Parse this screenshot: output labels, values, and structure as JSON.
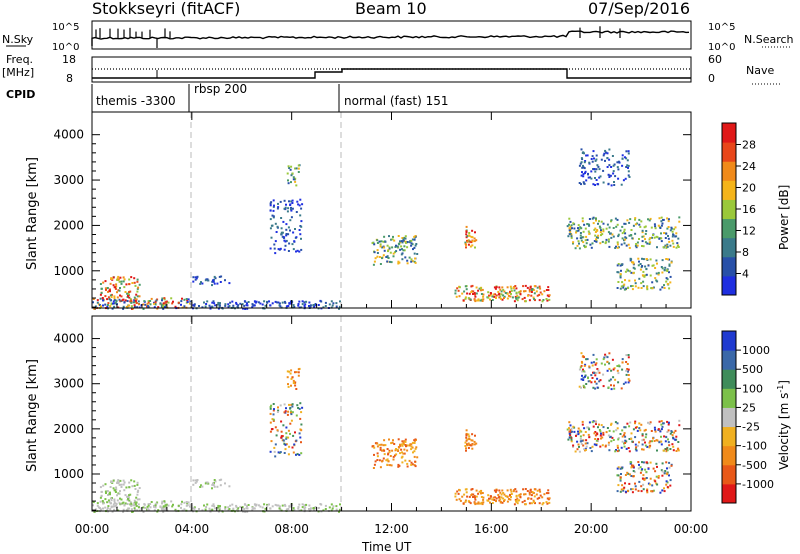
{
  "header": {
    "station": "Stokkseyri (fitACF)",
    "beam": "Beam 10",
    "date": "07/Sep/2016"
  },
  "top_panels": {
    "nsky_label": "N.Sky",
    "nsearch_label": "N.Search",
    "freq_label_1": "Freq.",
    "freq_label_2": "[MHz]",
    "nave_label": "Nave",
    "cpid_label": "CPID",
    "nsky_ticks": [
      "10^5",
      "10^0"
    ],
    "nsearch_ticks": [
      "10^5",
      "10^0"
    ],
    "freq_ticks": [
      "18",
      "8"
    ],
    "nave_ticks": [
      "60",
      "0"
    ],
    "cpid_segments": [
      {
        "label": "themis -3300",
        "start": 0.0,
        "end": 3.9
      },
      {
        "label": "rbsp 200",
        "start": 3.9,
        "end": 9.9
      },
      {
        "label": "normal (fast) 151",
        "start": 9.9,
        "end": 24.0
      }
    ]
  },
  "panels": {
    "ylabel": "Slant Range [km]",
    "xlabel": "Time UT",
    "yticks": [
      "1000",
      "2000",
      "3000",
      "4000"
    ],
    "xticks": [
      "00:00",
      "04:00",
      "08:00",
      "12:00",
      "16:00",
      "20:00",
      "00:00"
    ]
  },
  "power_colorbar": {
    "label": "Power [dB]",
    "ticks": [
      "4",
      "8",
      "12",
      "16",
      "20",
      "24",
      "28"
    ],
    "colors": [
      "#1f2fe0",
      "#2850a8",
      "#3a7a8a",
      "#4a9a6a",
      "#9ac83a",
      "#f4b41a",
      "#f08a1a",
      "#e8461a",
      "#e01818"
    ]
  },
  "velocity_colorbar": {
    "label": "Velocity [m s",
    "label_sup": "-1",
    "label_end": "]",
    "ticks": [
      "1000",
      "500",
      "100",
      "25",
      "-25",
      "-100",
      "-500",
      "-1000"
    ],
    "colors": [
      "#1f3ad0",
      "#3a68a8",
      "#3f8c5a",
      "#7cc04a",
      "#c0c0c0",
      "#f0b020",
      "#f08a1a",
      "#e85818",
      "#e01818"
    ]
  },
  "chart_data": {
    "type": "heatmap",
    "time_range_hours": [
      0,
      24
    ],
    "range_km": [
      180,
      4500
    ],
    "scatter_regions": [
      {
        "t0": 0.0,
        "t1": 3.9,
        "r0": 180,
        "r1": 420,
        "density": 0.9,
        "power": "mixed",
        "velocity": "low"
      },
      {
        "t0": 0.3,
        "t1": 1.9,
        "r0": 420,
        "r1": 900,
        "density": 0.6,
        "power": "high",
        "velocity": "low"
      },
      {
        "t0": 3.9,
        "t1": 9.9,
        "r0": 180,
        "r1": 360,
        "density": 0.75,
        "power": "low",
        "velocity": "low"
      },
      {
        "t0": 4.0,
        "t1": 5.5,
        "r0": 700,
        "r1": 900,
        "density": 0.5,
        "power": "low",
        "velocity": "low"
      },
      {
        "t0": 7.1,
        "t1": 8.4,
        "r0": 1400,
        "r1": 2600,
        "density": 0.35,
        "power": "low",
        "velocity": "mixed"
      },
      {
        "t0": 7.8,
        "t1": 8.3,
        "r0": 2900,
        "r1": 3400,
        "density": 0.5,
        "power": "mid",
        "velocity": "negative"
      },
      {
        "t0": 11.2,
        "t1": 13.0,
        "r0": 1150,
        "r1": 1800,
        "density": 0.55,
        "power": "mid",
        "velocity": "negative"
      },
      {
        "t0": 14.9,
        "t1": 15.4,
        "r0": 1500,
        "r1": 2000,
        "density": 0.7,
        "power": "high",
        "velocity": "negative"
      },
      {
        "t0": 14.5,
        "t1": 18.3,
        "r0": 350,
        "r1": 700,
        "density": 0.7,
        "power": "high",
        "velocity": "negative"
      },
      {
        "t0": 19.0,
        "t1": 23.5,
        "r0": 1500,
        "r1": 2200,
        "density": 0.45,
        "power": "mid",
        "velocity": "mixed"
      },
      {
        "t0": 19.5,
        "t1": 21.5,
        "r0": 2900,
        "r1": 3700,
        "density": 0.4,
        "power": "low",
        "velocity": "mixed"
      },
      {
        "t0": 21.0,
        "t1": 23.2,
        "r0": 600,
        "r1": 1300,
        "density": 0.45,
        "power": "mid",
        "velocity": "mixed"
      }
    ]
  }
}
